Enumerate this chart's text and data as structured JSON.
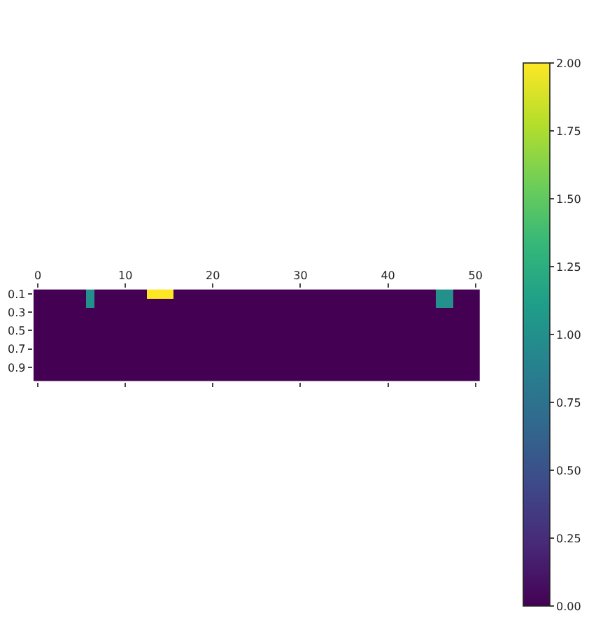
{
  "chart_data": {
    "type": "heatmap",
    "x": [
      0,
      1,
      2,
      3,
      4,
      5,
      6,
      7,
      8,
      9,
      10,
      11,
      12,
      13,
      14,
      15,
      16,
      17,
      18,
      19,
      20,
      21,
      22,
      23,
      24,
      25,
      26,
      27,
      28,
      29,
      30,
      31,
      32,
      33,
      34,
      35,
      36,
      37,
      38,
      39,
      40,
      41,
      42,
      43,
      44,
      45,
      46,
      47,
      48,
      49,
      50
    ],
    "xlim": [
      -0.5,
      50.5
    ],
    "xticks": [
      0,
      10,
      20,
      30,
      40,
      50
    ],
    "y_categories": [
      "0.1",
      null,
      "0.3",
      null,
      "0.5",
      null,
      "0.7",
      null,
      "0.9",
      null
    ],
    "cells": [
      [
        0,
        0,
        0,
        0,
        0,
        0,
        1,
        0,
        0,
        0,
        0,
        0,
        0,
        2,
        2,
        2,
        0,
        0,
        0,
        0,
        0,
        0,
        0,
        0,
        0,
        0,
        0,
        0,
        0,
        0,
        0,
        0,
        0,
        0,
        0,
        0,
        0,
        0,
        0,
        0,
        0,
        0,
        0,
        0,
        0,
        0,
        1,
        1,
        0,
        0,
        0
      ],
      [
        0,
        0,
        0,
        0,
        0,
        0,
        1,
        0,
        0,
        0,
        0,
        0,
        0,
        0,
        0,
        0,
        0,
        0,
        0,
        0,
        0,
        0,
        0,
        0,
        0,
        0,
        0,
        0,
        0,
        0,
        0,
        0,
        0,
        0,
        0,
        0,
        0,
        0,
        0,
        0,
        0,
        0,
        0,
        0,
        0,
        0,
        1,
        1,
        0,
        0,
        0
      ],
      [
        0,
        0,
        0,
        0,
        0,
        0,
        0,
        0,
        0,
        0,
        0,
        0,
        0,
        0,
        0,
        0,
        0,
        0,
        0,
        0,
        0,
        0,
        0,
        0,
        0,
        0,
        0,
        0,
        0,
        0,
        0,
        0,
        0,
        0,
        0,
        0,
        0,
        0,
        0,
        0,
        0,
        0,
        0,
        0,
        0,
        0,
        0,
        0,
        0,
        0,
        0
      ],
      [
        0,
        0,
        0,
        0,
        0,
        0,
        0,
        0,
        0,
        0,
        0,
        0,
        0,
        0,
        0,
        0,
        0,
        0,
        0,
        0,
        0,
        0,
        0,
        0,
        0,
        0,
        0,
        0,
        0,
        0,
        0,
        0,
        0,
        0,
        0,
        0,
        0,
        0,
        0,
        0,
        0,
        0,
        0,
        0,
        0,
        0,
        0,
        0,
        0,
        0,
        0
      ],
      [
        0,
        0,
        0,
        0,
        0,
        0,
        0,
        0,
        0,
        0,
        0,
        0,
        0,
        0,
        0,
        0,
        0,
        0,
        0,
        0,
        0,
        0,
        0,
        0,
        0,
        0,
        0,
        0,
        0,
        0,
        0,
        0,
        0,
        0,
        0,
        0,
        0,
        0,
        0,
        0,
        0,
        0,
        0,
        0,
        0,
        0,
        0,
        0,
        0,
        0,
        0
      ],
      [
        0,
        0,
        0,
        0,
        0,
        0,
        0,
        0,
        0,
        0,
        0,
        0,
        0,
        0,
        0,
        0,
        0,
        0,
        0,
        0,
        0,
        0,
        0,
        0,
        0,
        0,
        0,
        0,
        0,
        0,
        0,
        0,
        0,
        0,
        0,
        0,
        0,
        0,
        0,
        0,
        0,
        0,
        0,
        0,
        0,
        0,
        0,
        0,
        0,
        0,
        0
      ],
      [
        0,
        0,
        0,
        0,
        0,
        0,
        0,
        0,
        0,
        0,
        0,
        0,
        0,
        0,
        0,
        0,
        0,
        0,
        0,
        0,
        0,
        0,
        0,
        0,
        0,
        0,
        0,
        0,
        0,
        0,
        0,
        0,
        0,
        0,
        0,
        0,
        0,
        0,
        0,
        0,
        0,
        0,
        0,
        0,
        0,
        0,
        0,
        0,
        0,
        0,
        0
      ],
      [
        0,
        0,
        0,
        0,
        0,
        0,
        0,
        0,
        0,
        0,
        0,
        0,
        0,
        0,
        0,
        0,
        0,
        0,
        0,
        0,
        0,
        0,
        0,
        0,
        0,
        0,
        0,
        0,
        0,
        0,
        0,
        0,
        0,
        0,
        0,
        0,
        0,
        0,
        0,
        0,
        0,
        0,
        0,
        0,
        0,
        0,
        0,
        0,
        0,
        0,
        0
      ],
      [
        0,
        0,
        0,
        0,
        0,
        0,
        0,
        0,
        0,
        0,
        0,
        0,
        0,
        0,
        0,
        0,
        0,
        0,
        0,
        0,
        0,
        0,
        0,
        0,
        0,
        0,
        0,
        0,
        0,
        0,
        0,
        0,
        0,
        0,
        0,
        0,
        0,
        0,
        0,
        0,
        0,
        0,
        0,
        0,
        0,
        0,
        0,
        0,
        0,
        0,
        0
      ],
      [
        0,
        0,
        0,
        0,
        0,
        0,
        0,
        0,
        0,
        0,
        0,
        0,
        0,
        0,
        0,
        0,
        0,
        0,
        0,
        0,
        0,
        0,
        0,
        0,
        0,
        0,
        0,
        0,
        0,
        0,
        0,
        0,
        0,
        0,
        0,
        0,
        0,
        0,
        0,
        0,
        0,
        0,
        0,
        0,
        0,
        0,
        0,
        0,
        0,
        0,
        0
      ]
    ],
    "clim": [
      0,
      2
    ],
    "cticks": [
      {
        "value": 0,
        "label": "0.00"
      },
      {
        "value": 0.25,
        "label": "0.25"
      },
      {
        "value": 0.5,
        "label": "0.50"
      },
      {
        "value": 0.75,
        "label": "0.75"
      },
      {
        "value": 1,
        "label": "1.00"
      },
      {
        "value": 1.25,
        "label": "1.25"
      },
      {
        "value": 1.5,
        "label": "1.50"
      },
      {
        "value": 1.75,
        "label": "1.75"
      },
      {
        "value": 2,
        "label": "2.00"
      }
    ]
  }
}
